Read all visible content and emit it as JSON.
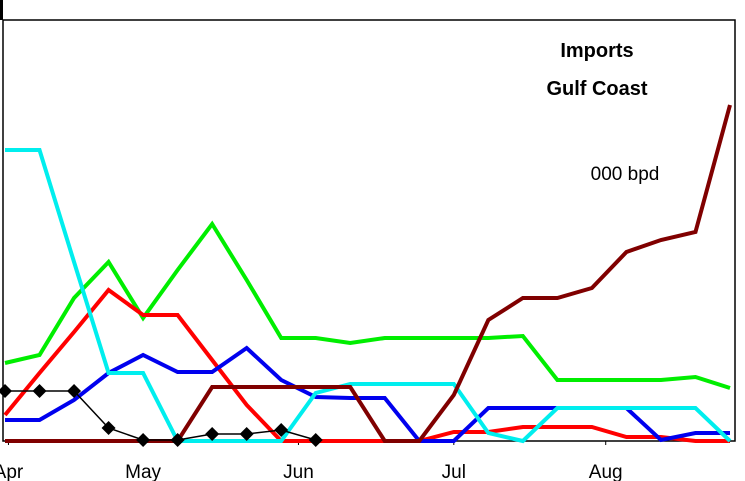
{
  "chart_data": {
    "type": "line",
    "title": [
      "Imports",
      "Gulf Coast"
    ],
    "annotation": "000 bpd",
    "categories": [
      null,
      null,
      null,
      null,
      null,
      null,
      null,
      null,
      null,
      null,
      null,
      null,
      null,
      null,
      null,
      null,
      null,
      null,
      null,
      null,
      null,
      null
    ],
    "xticks": [
      {
        "value": 0.1,
        "label": "Apr"
      },
      {
        "value": 4,
        "label": "May"
      },
      {
        "value": 8.5,
        "label": "Jun"
      },
      {
        "value": 13,
        "label": "Jul"
      },
      {
        "value": 17.4,
        "label": "Aug"
      }
    ],
    "ylim": [
      0,
      441
    ],
    "grid": false,
    "series": [
      {
        "color": "#00ee00",
        "values": [
          78,
          86,
          143,
          179,
          123,
          171,
          217,
          161,
          103,
          103,
          98,
          103,
          103,
          103,
          103,
          105,
          61,
          61,
          61,
          61,
          64,
          53
        ]
      },
      {
        "color": "#ff0000",
        "values": [
          26,
          68,
          109,
          151,
          126,
          126,
          81,
          36,
          0,
          0,
          0,
          0,
          0,
          9,
          9,
          14,
          14,
          14,
          4,
          4,
          0,
          0
        ]
      },
      {
        "color": "#0000ee",
        "values": [
          21,
          21,
          41,
          68,
          86,
          69,
          69,
          93,
          61,
          44,
          43,
          43,
          0,
          0,
          33,
          33,
          33,
          33,
          33,
          1,
          8,
          8
        ]
      },
      {
        "color": "#00eeee",
        "values": [
          291,
          291,
          179,
          68,
          68,
          0,
          0,
          0,
          0,
          48,
          57,
          57,
          57,
          57,
          8,
          0,
          33,
          33,
          33,
          33,
          33,
          0
        ]
      },
      {
        "color": "#800000",
        "values": [
          0,
          0,
          0,
          0,
          0,
          0,
          54,
          54,
          54,
          54,
          54,
          0,
          0,
          46,
          121,
          143,
          143,
          153,
          189,
          201,
          209,
          336
        ]
      },
      {
        "color": "#000000",
        "marker": "diamond",
        "values": [
          50,
          50,
          50,
          13,
          1,
          1,
          7,
          7,
          11,
          1,
          null,
          null,
          null,
          null,
          null,
          null,
          null,
          null,
          null,
          null,
          null,
          null
        ]
      }
    ]
  }
}
